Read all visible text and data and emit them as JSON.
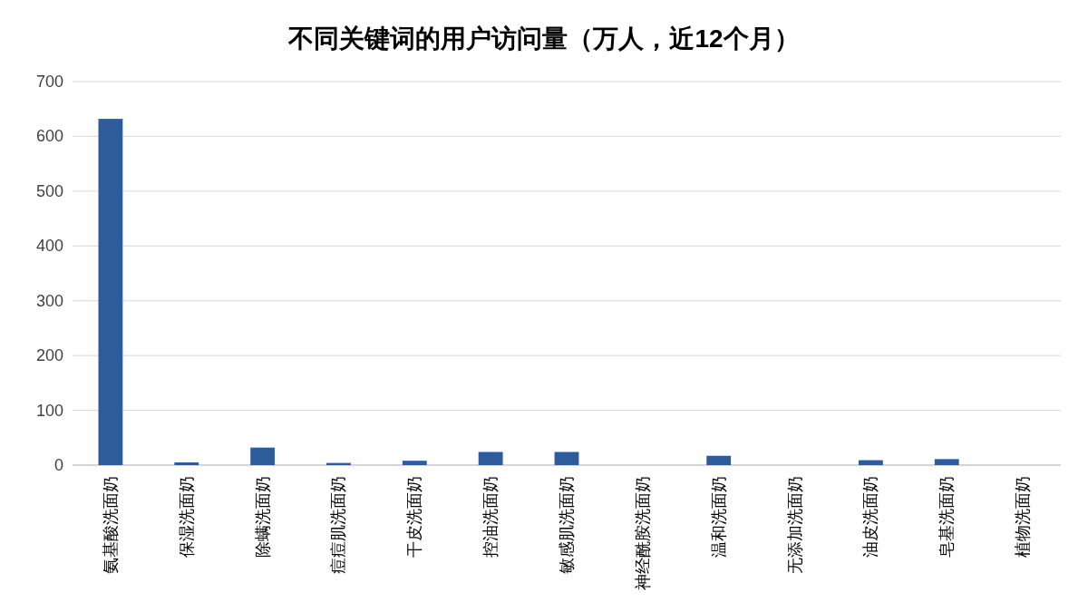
{
  "chart_data": {
    "type": "bar",
    "title": "不同关键词的用户访问量（万人，近12个月）",
    "categories": [
      "氨基酸洗面奶",
      "保湿洗面奶",
      "除螨洗面奶",
      "痘痘肌洗面奶",
      "干皮洗面奶",
      "控油洗面奶",
      "敏感肌洗面奶",
      "神经酰胺洗面奶",
      "温和洗面奶",
      "无添加洗面奶",
      "油皮洗面奶",
      "皂基洗面奶",
      "植物洗面奶"
    ],
    "values": [
      632,
      5,
      32,
      4,
      8,
      24,
      24,
      0,
      17,
      0,
      9,
      11,
      0
    ],
    "color": "#2e5c9a",
    "ylim": [
      0,
      700
    ],
    "yticks": [
      0,
      100,
      200,
      300,
      400,
      500,
      600,
      700
    ],
    "grid": "y"
  }
}
